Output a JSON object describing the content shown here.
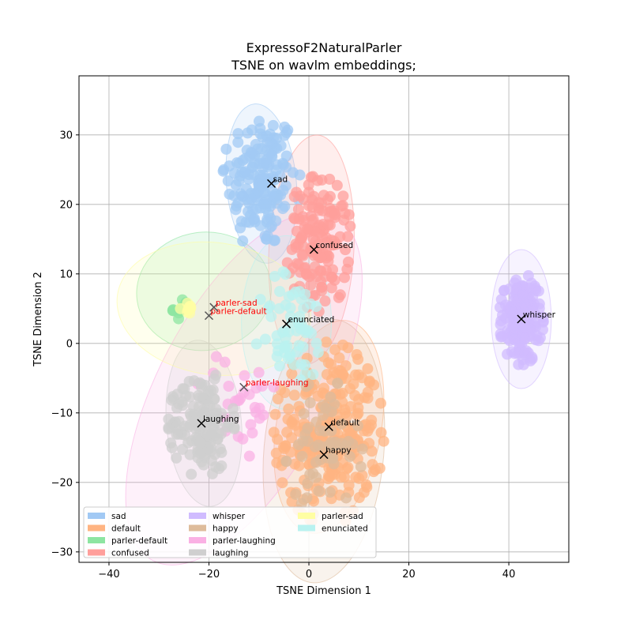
{
  "chart_data": {
    "type": "scatter",
    "title": "ExpressoF2NaturalParler",
    "subtitle": "TSNE on wavlm embeddings;",
    "xlabel": "TSNE Dimension 1",
    "ylabel": "TSNE Dimension 2",
    "xlim": [
      -46,
      52
    ],
    "ylim": [
      -31.5,
      38.5
    ],
    "xticks": [
      -40,
      -20,
      0,
      20,
      40
    ],
    "yticks": [
      -30,
      -20,
      -10,
      0,
      10,
      20,
      30
    ],
    "grid": true,
    "legend_position": "lower-left",
    "series": [
      {
        "name": "sad",
        "color": "#a1c9f4",
        "center": [
          -9.5,
          23.5
        ],
        "spread": [
          3.5,
          5.0
        ],
        "count": 160,
        "ellipse": {
          "cx": -9.5,
          "cy": 23.0,
          "rx": 7.0,
          "ry": 11.5,
          "angle": -5
        },
        "centroid": [
          -7.5,
          23.0
        ],
        "centroid_label": "sad"
      },
      {
        "name": "default",
        "color": "#ffb482",
        "center": [
          4.0,
          -13.0
        ],
        "spread": [
          5.0,
          6.0
        ],
        "count": 260,
        "ellipse": {
          "cx": 4.0,
          "cy": -12.0,
          "rx": 10.5,
          "ry": 15.5,
          "angle": 10
        },
        "centroid": [
          4.0,
          -12.0
        ],
        "centroid_label": "default"
      },
      {
        "name": "parler-default",
        "color": "#8de5a1",
        "center": [
          -25.5,
          5.0
        ],
        "spread": [
          0.8,
          0.7
        ],
        "count": 12,
        "ellipse": {
          "cx": -21.0,
          "cy": 7.5,
          "rx": 13.5,
          "ry": 8.5,
          "angle": -8
        },
        "centroid": [
          -20.0,
          4.0
        ],
        "centroid_label": "parler-default"
      },
      {
        "name": "confused",
        "color": "#ff9f9b",
        "center": [
          2.0,
          14.5
        ],
        "spread": [
          3.0,
          4.5
        ],
        "count": 150,
        "ellipse": {
          "cx": 0.5,
          "cy": 13.5,
          "rx": 8.5,
          "ry": 16.5,
          "angle": 3
        },
        "centroid": [
          1.0,
          13.5
        ],
        "centroid_label": "confused"
      },
      {
        "name": "whisper",
        "color": "#d0bbff",
        "center": [
          42.5,
          3.5
        ],
        "spread": [
          2.0,
          3.0
        ],
        "count": 170,
        "ellipse": {
          "cx": 42.5,
          "cy": 3.5,
          "rx": 6.0,
          "ry": 10.0,
          "angle": 0
        },
        "centroid": [
          42.5,
          3.5
        ],
        "centroid_label": "whisper"
      },
      {
        "name": "happy",
        "color": "#debb9b",
        "center": [
          3.0,
          -15.0
        ],
        "spread": [
          3.5,
          4.5
        ],
        "count": 60,
        "ellipse": {
          "cx": 3.0,
          "cy": -15.5,
          "rx": 12.0,
          "ry": 19.0,
          "angle": 5
        },
        "centroid": [
          3.0,
          -16.0
        ],
        "centroid_label": "happy"
      },
      {
        "name": "parler-laughing",
        "color": "#fab0e4",
        "center": [
          -14.0,
          -9.0
        ],
        "spread": [
          4.0,
          4.0
        ],
        "count": 30,
        "ellipse": {
          "cx": -13.0,
          "cy": -6.5,
          "rx": 17.0,
          "ry": 28.0,
          "angle": 28
        },
        "centroid": [
          -13.0,
          -6.3
        ],
        "centroid_label": "parler-laughing"
      },
      {
        "name": "laughing",
        "color": "#cfcfcf",
        "center": [
          -21.5,
          -11.5
        ],
        "spread": [
          3.0,
          3.5
        ],
        "count": 150,
        "ellipse": {
          "cx": -21.0,
          "cy": -11.5,
          "rx": 7.5,
          "ry": 12.0,
          "angle": -5
        },
        "centroid": [
          -21.5,
          -11.5
        ],
        "centroid_label": "laughing"
      },
      {
        "name": "parler-sad",
        "color": "#fffea3",
        "center": [
          -25.0,
          5.0
        ],
        "spread": [
          1.0,
          0.8
        ],
        "count": 10,
        "ellipse": {
          "cx": -19.0,
          "cy": 5.0,
          "rx": 19.5,
          "ry": 9.5,
          "angle": 8
        },
        "centroid": [
          -19.0,
          5.2
        ],
        "centroid_label": "parler-sad"
      },
      {
        "name": "enunciated",
        "color": "#b9f2f0",
        "center": [
          -3.0,
          2.0
        ],
        "spread": [
          3.5,
          4.0
        ],
        "count": 60,
        "ellipse": {
          "cx": -4.5,
          "cy": 3.0,
          "rx": 9.0,
          "ry": 12.5,
          "angle": 0
        },
        "centroid": [
          -4.5,
          2.8
        ],
        "centroid_label": "enunciated"
      }
    ],
    "centroid_label_colors": {
      "parler-sad": "#ff0000",
      "parler-default": "#ff0000",
      "parler-laughing": "#ff0000",
      "default": "#000000"
    },
    "point_alpha": 0.75,
    "ellipse_alpha": 0.18
  }
}
